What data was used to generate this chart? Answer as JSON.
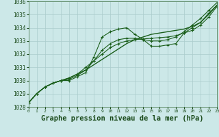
{
  "background_color": "#cce8e8",
  "plot_bg_color": "#cce8e8",
  "grid_color": "#aacccc",
  "line_color": "#1a5e1a",
  "xlabel": "Graphe pression niveau de la mer (hPa)",
  "xlabel_fontsize": 7.5,
  "ylim": [
    1028,
    1036
  ],
  "xlim": [
    0,
    23
  ],
  "yticks": [
    1028,
    1029,
    1030,
    1031,
    1032,
    1033,
    1034,
    1035,
    1036
  ],
  "xticks": [
    0,
    1,
    2,
    3,
    4,
    5,
    6,
    7,
    8,
    9,
    10,
    11,
    12,
    13,
    14,
    15,
    16,
    17,
    18,
    19,
    20,
    21,
    22,
    23
  ],
  "series": [
    {
      "x": [
        0,
        1,
        2,
        3,
        4,
        5,
        6,
        7,
        8,
        9,
        10,
        11,
        12,
        13,
        14,
        15,
        16,
        17,
        18,
        19,
        20,
        21,
        22,
        23
      ],
      "y": [
        1028.3,
        1029.0,
        1029.5,
        1029.8,
        1030.0,
        1030.2,
        1030.5,
        1030.8,
        1031.2,
        1031.6,
        1032.0,
        1032.4,
        1032.8,
        1033.1,
        1033.3,
        1033.5,
        1033.6,
        1033.7,
        1033.8,
        1033.9,
        1034.1,
        1034.4,
        1035.0,
        1035.7
      ],
      "marker": null,
      "linestyle": "-",
      "linewidth": 1.0
    },
    {
      "x": [
        0,
        1,
        2,
        3,
        4,
        5,
        6,
        7,
        8,
        9,
        10,
        11,
        12,
        13,
        14,
        15,
        16,
        17,
        18,
        19,
        20,
        21,
        22,
        23
      ],
      "y": [
        1028.3,
        1029.0,
        1029.5,
        1029.8,
        1030.0,
        1030.0,
        1030.3,
        1030.6,
        1031.8,
        1033.3,
        1033.7,
        1033.9,
        1034.0,
        1033.5,
        1033.1,
        1032.6,
        1032.6,
        1032.7,
        1032.8,
        1033.6,
        1034.0,
        1034.4,
        1035.1,
        1035.7
      ],
      "marker": "+",
      "linestyle": "-",
      "linewidth": 0.8
    },
    {
      "x": [
        0,
        1,
        2,
        3,
        4,
        5,
        6,
        7,
        8,
        9,
        10,
        11,
        12,
        13,
        14,
        15,
        16,
        17,
        18,
        19,
        20,
        21,
        22,
        23
      ],
      "y": [
        1028.3,
        1029.0,
        1029.5,
        1029.8,
        1030.0,
        1030.2,
        1030.5,
        1031.0,
        1031.5,
        1032.0,
        1032.5,
        1032.8,
        1033.0,
        1033.1,
        1033.15,
        1033.2,
        1033.25,
        1033.3,
        1033.4,
        1033.6,
        1033.8,
        1034.2,
        1034.8,
        1035.6
      ],
      "marker": "+",
      "linestyle": "-",
      "linewidth": 0.8
    },
    {
      "x": [
        0,
        1,
        2,
        3,
        4,
        5,
        6,
        7,
        8,
        9,
        10,
        11,
        12,
        13,
        14,
        15,
        16,
        17,
        18,
        19,
        20,
        21,
        22,
        23
      ],
      "y": [
        1028.3,
        1029.0,
        1029.5,
        1029.8,
        1030.0,
        1030.1,
        1030.4,
        1030.8,
        1031.5,
        1032.3,
        1032.8,
        1033.1,
        1033.2,
        1033.2,
        1033.1,
        1033.0,
        1033.0,
        1033.1,
        1033.3,
        1033.7,
        1034.2,
        1034.7,
        1035.3,
        1035.9
      ],
      "marker": "+",
      "linestyle": "-",
      "linewidth": 0.8
    }
  ]
}
